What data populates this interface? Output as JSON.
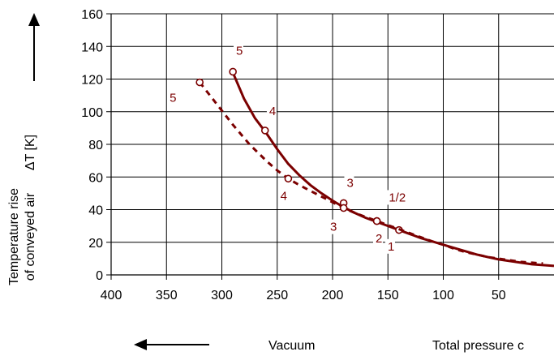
{
  "chart_data": {
    "type": "line",
    "ylabel_line1": "Temperature rise",
    "ylabel_line2": "of conveyed air",
    "ylabel_symbol": "ΔT [K]",
    "xlabel_left": "Vacuum",
    "xlabel_right": "Total pressure c",
    "xlim": [
      400,
      0
    ],
    "ylim": [
      0,
      160
    ],
    "x_ticks": [
      400,
      350,
      300,
      250,
      200,
      150,
      100,
      50
    ],
    "y_ticks": [
      0,
      20,
      40,
      60,
      80,
      100,
      120,
      140,
      160
    ],
    "grid": true,
    "color": "#7b0000",
    "series": [
      {
        "style": "solid",
        "curve": [
          [
            290,
            124
          ],
          [
            280,
            108
          ],
          [
            270,
            96
          ],
          [
            260,
            87
          ],
          [
            250,
            77
          ],
          [
            240,
            68
          ],
          [
            230,
            61
          ],
          [
            220,
            55
          ],
          [
            210,
            50
          ],
          [
            200,
            45.5
          ],
          [
            190,
            41.5
          ],
          [
            180,
            38
          ],
          [
            170,
            35
          ],
          [
            160,
            32.5
          ],
          [
            150,
            30
          ],
          [
            140,
            27.5
          ],
          [
            130,
            25
          ],
          [
            120,
            22.5
          ],
          [
            110,
            20.5
          ],
          [
            100,
            18.5
          ],
          [
            90,
            16.5
          ],
          [
            80,
            14.5
          ],
          [
            70,
            12.5
          ],
          [
            60,
            11
          ],
          [
            50,
            9.5
          ],
          [
            40,
            8.5
          ],
          [
            30,
            7.5
          ],
          [
            20,
            6.5
          ],
          [
            10,
            6
          ],
          [
            0,
            5.5
          ]
        ],
        "markers": [
          [
            290,
            124.5
          ],
          [
            261,
            88.5
          ],
          [
            190,
            44
          ],
          [
            160,
            33
          ],
          [
            140,
            27.5
          ]
        ]
      },
      {
        "style": "dashed",
        "curve": [
          [
            320,
            118
          ],
          [
            305,
            105
          ],
          [
            290,
            92
          ],
          [
            275,
            80
          ],
          [
            260,
            70
          ],
          [
            250,
            64
          ],
          [
            240,
            59
          ],
          [
            230,
            55
          ],
          [
            220,
            51.5
          ],
          [
            210,
            48
          ],
          [
            200,
            44.5
          ],
          [
            190,
            41
          ],
          [
            180,
            38
          ],
          [
            170,
            35.5
          ],
          [
            160,
            33
          ],
          [
            150,
            30.5
          ],
          [
            140,
            28
          ],
          [
            130,
            25.5
          ],
          [
            120,
            23
          ],
          [
            110,
            20.5
          ],
          [
            100,
            18.5
          ],
          [
            90,
            16
          ],
          [
            80,
            14
          ],
          [
            70,
            12.5
          ],
          [
            60,
            11
          ],
          [
            50,
            10
          ],
          [
            40,
            9
          ],
          [
            30,
            8
          ],
          [
            20,
            7.5
          ],
          [
            10,
            7
          ]
        ],
        "markers": [
          [
            320,
            118
          ],
          [
            240,
            59
          ],
          [
            190,
            41
          ],
          [
            160,
            33
          ]
        ]
      }
    ],
    "point_labels": [
      {
        "text": "5",
        "x": 285,
        "y": 135
      },
      {
        "text": "4",
        "x": 255,
        "y": 98
      },
      {
        "text": "3",
        "x": 185,
        "y": 54
      },
      {
        "text": "1/2",
        "x": 147,
        "y": 45
      },
      {
        "text": "1",
        "x": 148,
        "y": 15
      },
      {
        "text": "2",
        "x": 159,
        "y": 20
      },
      {
        "text": "3",
        "x": 200,
        "y": 27
      },
      {
        "text": "4",
        "x": 245,
        "y": 46
      },
      {
        "text": "5",
        "x": 345,
        "y": 106
      }
    ]
  }
}
